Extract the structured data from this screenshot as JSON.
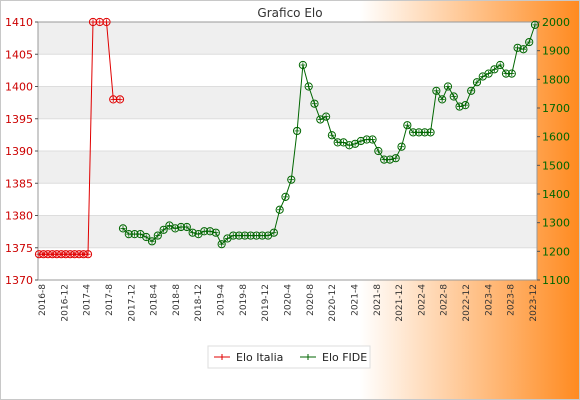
{
  "chart_data": {
    "type": "line",
    "title": "Grafico Elo",
    "y_left": {
      "ylim": [
        1370,
        1410
      ],
      "ticks": [
        1370,
        1375,
        1380,
        1385,
        1390,
        1395,
        1400,
        1405,
        1410
      ]
    },
    "y_right": {
      "ylim": [
        1100,
        2000
      ],
      "ticks": [
        1100,
        1200,
        1300,
        1400,
        1500,
        1600,
        1700,
        1800,
        1900,
        2000
      ]
    },
    "x_labels": [
      "2016-8",
      "2016-12",
      "2017-4",
      "2017-8",
      "2017-12",
      "2018-4",
      "2018-8",
      "2018-12",
      "2019-4",
      "2019-8",
      "2019-12",
      "2020-4",
      "2020-8",
      "2020-12",
      "2021-4",
      "2021-8",
      "2021-12",
      "2022-4",
      "2022-8",
      "2022-12",
      "2023-4",
      "2023-8",
      "2023-12"
    ],
    "legend": [
      "Elo Italia",
      "Elo FIDE"
    ],
    "legend_position": "bottom",
    "colors": {
      "italia": "#e00000",
      "fide": "#006600",
      "bg_gradient_end": "#ff8a1f"
    },
    "series": [
      {
        "name": "Elo Italia",
        "axis": "left",
        "values": [
          1374,
          1374,
          1374,
          1374,
          1374,
          1374,
          1374,
          1374,
          1374,
          1374,
          1374,
          1374,
          1410,
          1410,
          1410,
          1398,
          1398
        ]
      },
      {
        "name": "Elo FIDE",
        "axis": "right",
        "values": [
          1280,
          1260,
          1260,
          1260,
          1250,
          1235,
          1255,
          1275,
          1290,
          1280,
          1285,
          1285,
          1265,
          1260,
          1270,
          1270,
          1265,
          1225,
          1245,
          1255,
          1255,
          1255,
          1255,
          1255,
          1255,
          1255,
          1265,
          1345,
          1390,
          1450,
          1620,
          1850,
          1775,
          1715,
          1660,
          1670,
          1605,
          1580,
          1580,
          1570,
          1575,
          1585,
          1590,
          1590,
          1550,
          1520,
          1520,
          1525,
          1565,
          1640,
          1615,
          1615,
          1615,
          1615,
          1760,
          1730,
          1775,
          1740,
          1705,
          1710,
          1760,
          1790,
          1810,
          1820,
          1835,
          1850,
          1820,
          1820,
          1910,
          1905,
          1930,
          1990
        ]
      }
    ]
  }
}
